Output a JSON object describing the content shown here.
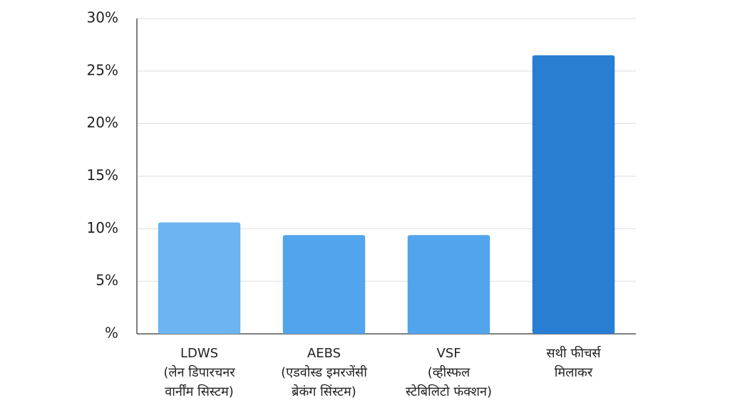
{
  "chart_data": {
    "type": "bar",
    "categories": [
      "LDWS\n(लेन डिपारचनर\nवार्नींम सिस्टम)",
      "AEBS\n(एडवोस्ड इमरजेंसी\nब्रेकंग सिंस्टम)",
      "VSF\n(व्हीस्फल\nस्टेबिलिटो फंक्शन)",
      "सथी फीचर्स\nमिलाकर"
    ],
    "values": [
      10.6,
      9.4,
      9.4,
      26.5
    ],
    "colors": [
      "#6db4f2",
      "#52a5ec",
      "#52a5ec",
      "#287ed2"
    ],
    "ylim": [
      0,
      30
    ],
    "yticks": [
      {
        "value": 0,
        "label": "%"
      },
      {
        "value": 5,
        "label": "5%"
      },
      {
        "value": 10,
        "label": "10%"
      },
      {
        "value": 15,
        "label": "15%"
      },
      {
        "value": 20,
        "label": "20%"
      },
      {
        "value": 25,
        "label": "25%"
      },
      {
        "value": 30,
        "label": "30%"
      }
    ],
    "grid": true
  }
}
